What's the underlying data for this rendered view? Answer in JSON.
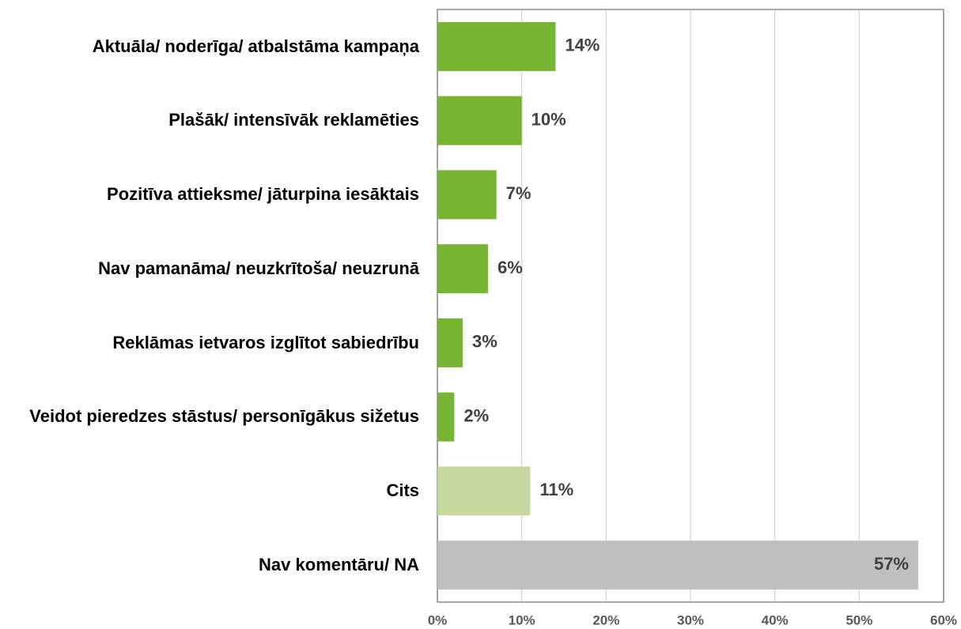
{
  "chart_data": {
    "type": "bar",
    "orientation": "horizontal",
    "categories": [
      "Aktuāla/ noderīga/ atbalstāma kampaņa",
      "Plašāk/ intensīvāk reklamēties",
      "Pozitīva attieksme/ jāturpina iesāktais",
      "Nav pamanāma/ neuzkrītoša/ neuzrunā",
      "Reklāmas ietvaros izglītot sabiedrību",
      "Veidot pieredzes stāstus/ personīgākus sižetus",
      "Cits",
      "Nav komentāru/ NA"
    ],
    "values": [
      14,
      10,
      7,
      6,
      3,
      2,
      11,
      57
    ],
    "value_labels": [
      "14%",
      "10%",
      "7%",
      "6%",
      "3%",
      "2%",
      "11%",
      "57%"
    ],
    "colors": [
      "#77b432",
      "#77b432",
      "#77b432",
      "#77b432",
      "#77b432",
      "#77b432",
      "#c5d89d",
      "#bfbfbf"
    ],
    "xlim": [
      0,
      60
    ],
    "xticks": [
      {
        "value": 0,
        "label": "0%"
      },
      {
        "value": 10,
        "label": "10%"
      },
      {
        "value": 20,
        "label": "20%"
      },
      {
        "value": 30,
        "label": "30%"
      },
      {
        "value": 40,
        "label": "40%"
      },
      {
        "value": 50,
        "label": "50%"
      },
      {
        "value": 60,
        "label": "60%"
      }
    ],
    "grid": true
  }
}
